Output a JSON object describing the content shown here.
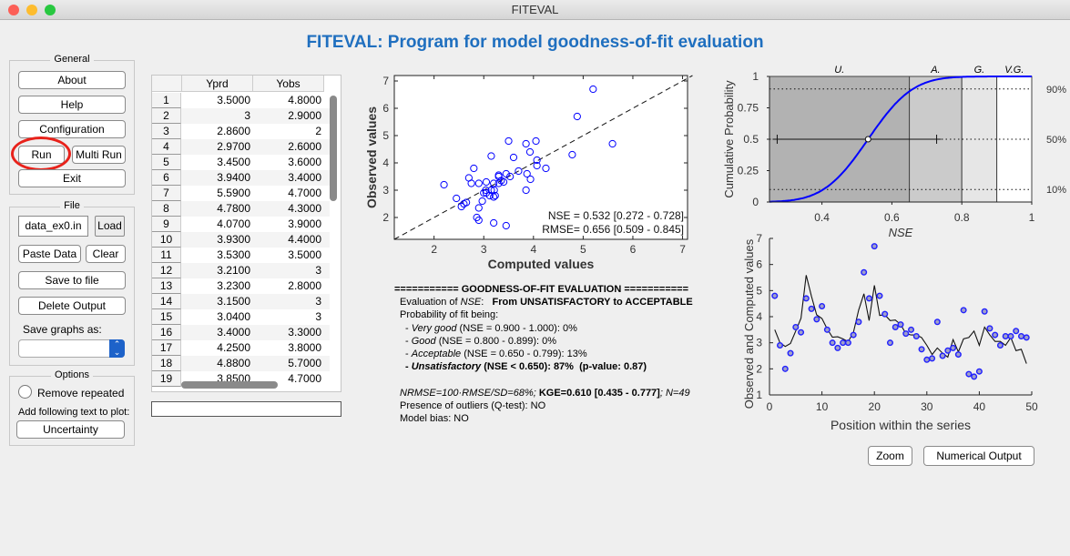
{
  "window": {
    "title": "FITEVAL"
  },
  "app_title": "FITEVAL: Program for model goodness-of-fit evaluation",
  "general": {
    "label": "General",
    "about": "About",
    "help": "Help",
    "configuration": "Configuration",
    "run": "Run",
    "multi_run": "Multi Run",
    "exit": "Exit"
  },
  "file": {
    "label": "File",
    "filename": "data_ex0.in",
    "load": "Load",
    "paste_data": "Paste Data",
    "clear": "Clear",
    "save_to_file": "Save to file",
    "delete_output": "Delete Output",
    "save_graphs_as": "Save graphs as:",
    "save_graphs_value": ""
  },
  "options": {
    "label": "Options",
    "remove_repeated": "Remove repeated",
    "remove_repeated_checked": false,
    "add_text_label": "Add following text to plot:",
    "uncertainty": "Uncertainty"
  },
  "table": {
    "columns": [
      "Yprd",
      "Yobs"
    ],
    "rows": [
      [
        "1",
        "3.5000",
        "4.8000"
      ],
      [
        "2",
        "3",
        "2.9000"
      ],
      [
        "3",
        "2.8600",
        "2"
      ],
      [
        "4",
        "2.9700",
        "2.6000"
      ],
      [
        "5",
        "3.4500",
        "3.6000"
      ],
      [
        "6",
        "3.9400",
        "3.4000"
      ],
      [
        "7",
        "5.5900",
        "4.7000"
      ],
      [
        "8",
        "4.7800",
        "4.3000"
      ],
      [
        "9",
        "4.0700",
        "3.9000"
      ],
      [
        "10",
        "3.9300",
        "4.4000"
      ],
      [
        "11",
        "3.5300",
        "3.5000"
      ],
      [
        "12",
        "3.2100",
        "3"
      ],
      [
        "13",
        "3.2300",
        "2.8000"
      ],
      [
        "14",
        "3.1500",
        "3"
      ],
      [
        "15",
        "3.0400",
        "3"
      ],
      [
        "16",
        "3.4000",
        "3.3000"
      ],
      [
        "17",
        "4.2500",
        "3.8000"
      ],
      [
        "18",
        "4.8800",
        "5.7000"
      ],
      [
        "19",
        "3.8500",
        "4.7000"
      ]
    ]
  },
  "status_field": "",
  "evaluation": {
    "header": "=========== GOODNESS-OF-FIT EVALUATION ===========",
    "eval_prefix": "Evaluation of ",
    "eval_nse": "NSE",
    "eval_colon": ":   ",
    "eval_result": "From UNSATISFACTORY to ACCEPTABLE",
    "prob_label": "Probability of fit being:",
    "lines": [
      {
        "name": "Very good",
        "range": " (NSE = 0.900 - 1.000): 0%"
      },
      {
        "name": "Good",
        "range": " (NSE = 0.800 - 0.899): 0%"
      },
      {
        "name": "Acceptable",
        "range": " (NSE = 0.650 - 0.799): 13%"
      },
      {
        "name": "Unsatisfactory",
        "range": " (NSE < 0.650): 87%  (p-value: 0.87)"
      }
    ],
    "nrmse": "NRMSE=100·RMSE/SD=68%; ",
    "kge": "KGE=0.610 [0.435 - 0.777]",
    "n": "; N=49",
    "outliers": "Presence of outliers (Q-test): NO",
    "bias": "Model bias: NO"
  },
  "buttons": {
    "zoom": "Zoom",
    "numerical_output": "Numerical Output"
  },
  "chart_data": [
    {
      "type": "scatter",
      "xlabel": "Computed values",
      "ylabel": "Observed values",
      "xlim": [
        1.2,
        7.1
      ],
      "ylim": [
        1.2,
        7.2
      ],
      "xticks": [
        2,
        3,
        4,
        5,
        6,
        7
      ],
      "yticks": [
        2,
        3,
        4,
        5,
        6,
        7
      ],
      "reference_line": "1:1 dashed",
      "annotations": [
        "NSE = 0.532 [0.272 - 0.728]",
        "RMSE= 0.656 [0.509 - 0.845]"
      ],
      "marker_color": "#0000ff"
    },
    {
      "type": "line",
      "xlabel": "NSE",
      "ylabel": "Cumulative Probability",
      "xlim": [
        0.25,
        1
      ],
      "ylim": [
        0,
        1
      ],
      "xticks": [
        "0.4",
        "0.6",
        "0.8",
        "1"
      ],
      "yticks": [
        "0",
        "0.25",
        "0.5",
        "0.75",
        "1"
      ],
      "regions": [
        {
          "label": "U.",
          "from": 0.25,
          "to": 0.65,
          "color": "#b2b2b2"
        },
        {
          "label": "A.",
          "from": 0.65,
          "to": 0.8,
          "color": "#cbcbcb"
        },
        {
          "label": "G.",
          "from": 0.8,
          "to": 0.9,
          "color": "#e6e6e6"
        },
        {
          "label": "V.G.",
          "from": 0.9,
          "to": 1.0,
          "color": "#ffffff"
        }
      ],
      "percentile_lines": [
        {
          "label": "90%",
          "p": 0.9
        },
        {
          "label": "50%",
          "p": 0.5
        },
        {
          "label": "10%",
          "p": 0.1
        }
      ],
      "nse_median": 0.532,
      "nse_ci": [
        0.272,
        0.728
      ],
      "curve_color": "#0000ff"
    },
    {
      "type": "line",
      "xlabel": "Position within the series",
      "ylabel": "Observed and Computed values",
      "xlim": [
        0,
        50
      ],
      "ylim": [
        1,
        7
      ],
      "xticks": [
        0,
        10,
        20,
        30,
        40,
        50
      ],
      "yticks": [
        1,
        2,
        3,
        4,
        5,
        6,
        7
      ],
      "computed": [
        3.5,
        3,
        2.86,
        2.97,
        3.45,
        3.94,
        5.59,
        4.78,
        4.07,
        3.93,
        3.53,
        3.21,
        3.23,
        3.15,
        3.04,
        3.4,
        4.25,
        4.88,
        3.85,
        5.2,
        4.05,
        4.07,
        3.85,
        3.87,
        3.7,
        3.35,
        3.3,
        3.3,
        3.2,
        2.9,
        2.55,
        2.8,
        2.6,
        2.45,
        3.12,
        2.65,
        3.15,
        3.2,
        3.45,
        2.9,
        3.6,
        3.3,
        3.05,
        3.05,
        2.9,
        3.2,
        2.7,
        2.75,
        2.2
      ],
      "observed": [
        4.8,
        2.9,
        2,
        2.6,
        3.6,
        3.4,
        4.7,
        4.3,
        3.9,
        4.4,
        3.5,
        3,
        2.8,
        3,
        3,
        3.3,
        3.8,
        5.7,
        4.7,
        6.7,
        4.8,
        4.1,
        3,
        3.6,
        3.7,
        3.35,
        3.5,
        3.25,
        2.75,
        2.35,
        2.4,
        3.8,
        2.5,
        2.7,
        2.8,
        2.55,
        4.25,
        1.8,
        1.7,
        1.9,
        4.2,
        3.55,
        3.3,
        2.9,
        3.25,
        3.25,
        3.45,
        3.25,
        3.2
      ]
    }
  ]
}
